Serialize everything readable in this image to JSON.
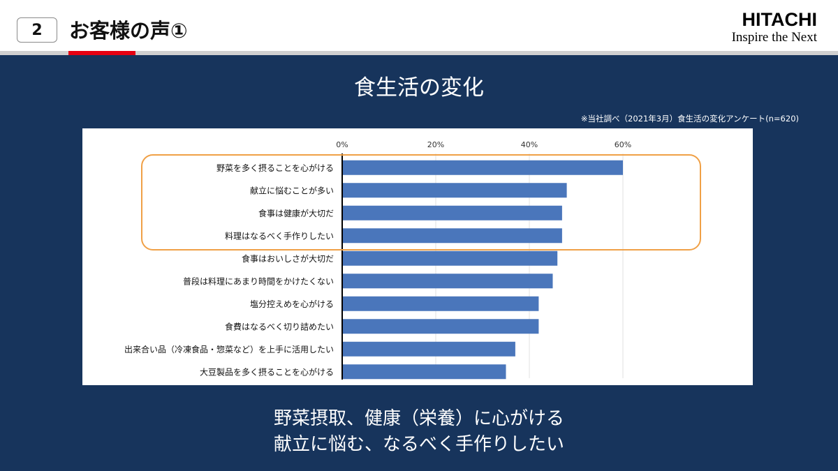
{
  "header": {
    "slide_number": "2",
    "title": "お客様の声①",
    "logo": {
      "brand": "HITACHI",
      "tagline": "Inspire the Next"
    },
    "accent_color": "#e60012"
  },
  "chart_data": {
    "type": "bar",
    "orientation": "horizontal",
    "title": "食生活の変化",
    "source_note": "※当社調べ（2021年3月）食生活の変化アンケート(n=620)",
    "categories": [
      "野菜を多く摂ることを心がける",
      "献立に悩むことが多い",
      "食事は健康が大切だ",
      "料理はなるべく手作りしたい",
      "食事はおいしさが大切だ",
      "普段は料理にあまり時間をかけたくない",
      "塩分控えめを心がける",
      "食費はなるべく切り詰めたい",
      "出来合い品（冷凍食品・惣菜など）を上手に活用したい",
      "大豆製品を多く摂ることを心がける"
    ],
    "values": [
      60,
      48,
      47,
      47,
      46,
      45,
      42,
      42,
      37,
      35
    ],
    "unit": "%",
    "xlim": [
      0,
      60
    ],
    "ticks": [
      "0%",
      "20%",
      "40%",
      "60%"
    ],
    "tick_values": [
      0,
      20,
      40,
      60
    ],
    "highlighted_categories": [
      0,
      1,
      2,
      3
    ],
    "bar_color": "#4a76bb",
    "highlight_color": "#f0a046",
    "grid": true
  },
  "conclusion": {
    "line1": "野菜摂取、健康（栄養）に心がける",
    "line2": "献立に悩む、なるべく手作りしたい"
  }
}
